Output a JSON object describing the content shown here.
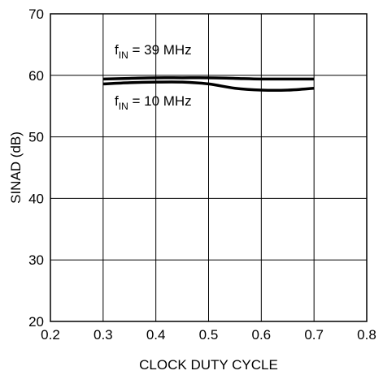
{
  "chart_data": {
    "type": "line",
    "title": "",
    "xlabel": "CLOCK DUTY CYCLE",
    "ylabel": "SINAD (dB)",
    "xlim": [
      0.2,
      0.8
    ],
    "ylim": [
      20,
      70
    ],
    "xticks": [
      "0.2",
      "0.3",
      "0.4",
      "0.5",
      "0.6",
      "0.7",
      "0.8"
    ],
    "yticks": [
      "20",
      "30",
      "40",
      "50",
      "60",
      "70"
    ],
    "grid": true,
    "series": [
      {
        "name": "fIN = 39 MHz",
        "x": [
          0.3,
          0.35,
          0.4,
          0.45,
          0.5,
          0.55,
          0.6,
          0.65,
          0.7
        ],
        "y": [
          59.4,
          59.5,
          59.6,
          59.6,
          59.6,
          59.5,
          59.4,
          59.4,
          59.4
        ]
      },
      {
        "name": "fIN = 10 MHz",
        "x": [
          0.3,
          0.35,
          0.4,
          0.45,
          0.5,
          0.55,
          0.6,
          0.65,
          0.7
        ],
        "y": [
          58.6,
          58.8,
          58.9,
          58.9,
          58.6,
          57.9,
          57.6,
          57.6,
          57.9
        ]
      }
    ],
    "annotations": [
      {
        "base": "f",
        "sub": "IN",
        "rest": " = 39 MHz",
        "series": 0
      },
      {
        "base": "f",
        "sub": "IN",
        "rest": " = 10 MHz",
        "series": 1
      }
    ],
    "line_color": "#000000"
  }
}
